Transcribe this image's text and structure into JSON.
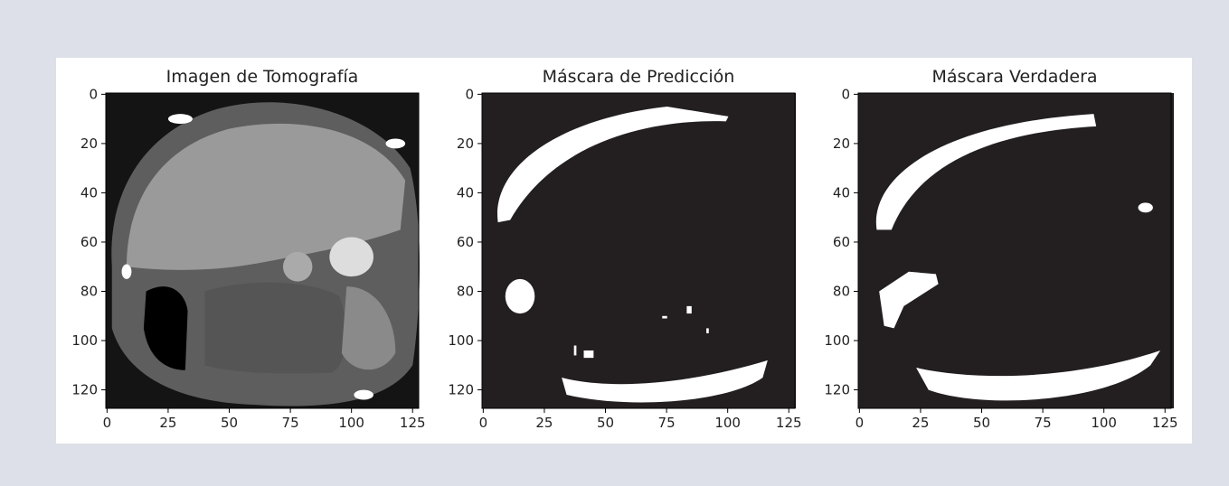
{
  "chart_data": [
    {
      "type": "image",
      "title": "Imagen de Tomografía",
      "xlim": [
        -0.5,
        127.5
      ],
      "ylim": [
        127.5,
        -0.5
      ],
      "xticks": [
        0,
        25,
        50,
        75,
        100,
        125
      ],
      "yticks": [
        0,
        20,
        40,
        60,
        80,
        100,
        120
      ]
    },
    {
      "type": "image",
      "title": "Máscara de Predicción",
      "xlim": [
        -0.5,
        127.5
      ],
      "ylim": [
        127.5,
        -0.5
      ],
      "xticks": [
        0,
        25,
        50,
        75,
        100,
        125
      ],
      "yticks": [
        0,
        20,
        40,
        60,
        80,
        100,
        120
      ]
    },
    {
      "type": "image",
      "title": "Máscara Verdadera",
      "xlim": [
        -0.5,
        127.5
      ],
      "ylim": [
        127.5,
        -0.5
      ],
      "xticks": [
        0,
        25,
        50,
        75,
        100,
        125
      ],
      "yticks": [
        0,
        20,
        40,
        60,
        80,
        100,
        120
      ]
    }
  ]
}
